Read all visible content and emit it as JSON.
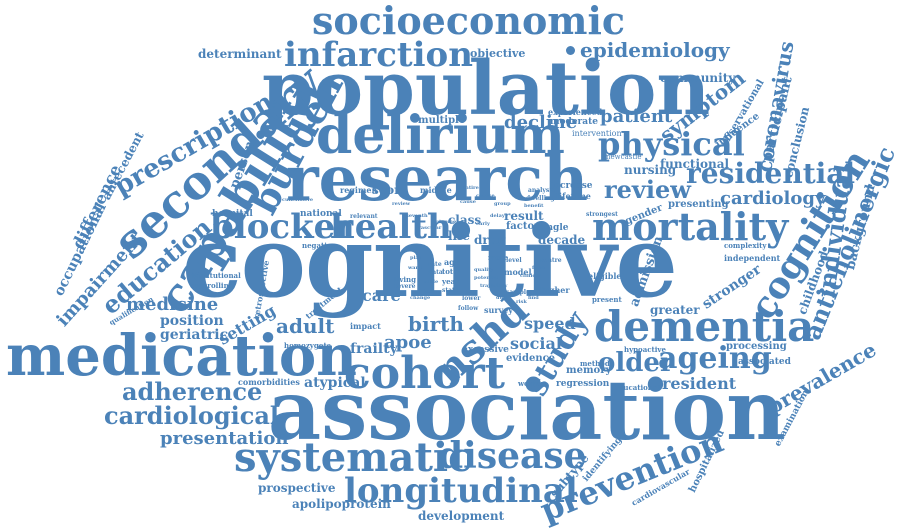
{
  "cloud": {
    "color": "#4b82b8",
    "words": [
      "cognitive",
      "population",
      "association",
      "medication",
      "research",
      "delirium",
      "dementia",
      "socioeconomic",
      "infarction",
      "secondary",
      "capability",
      "mortality",
      "blocker",
      "health",
      "cohort",
      "nshd",
      "study",
      "systematic",
      "disease",
      "longitudinal",
      "prevention",
      "ageing",
      "older",
      "cognition",
      "residential",
      "physical",
      "review",
      "burden",
      "prescription",
      "epidemiology",
      "education",
      "adherence",
      "cardiological",
      "presentation",
      "patient",
      "symptom",
      "decline",
      "coronavirus",
      "anticholinergic",
      "individual",
      "prevalence",
      "cardiology",
      "impairment",
      "difference",
      "occupational",
      "antecedent",
      "medicine",
      "position",
      "geriatric",
      "setting",
      "adult",
      "care",
      "birth",
      "apoe",
      "frailty",
      "atypical",
      "social",
      "speed",
      "resident",
      "admission",
      "stronger",
      "greater",
      "childhood",
      "background",
      "participant",
      "conclusion",
      "community",
      "observational",
      "influence",
      "multiple",
      "moderate",
      "experienced",
      "intervention",
      "objective",
      "determinant",
      "person",
      "hospital",
      "national",
      "score",
      "regimen",
      "midlife",
      "class",
      "result",
      "factor",
      "single",
      "decade",
      "life",
      "drug",
      "increase",
      "lifetime",
      "nursing",
      "functional",
      "gender",
      "presenting",
      "processing",
      "associated",
      "examination",
      "hospitalized",
      "cardiovascular",
      "subtype",
      "identifying",
      "evidence",
      "memory",
      "regression",
      "educational",
      "excessive",
      "survey",
      "model",
      "impact",
      "homozygote",
      "retrospective",
      "treatment",
      "institutional",
      "controlling",
      "qualification",
      "comorbidities",
      "apolipoprotein",
      "development",
      "prospective",
      "independent",
      "complexity",
      "hypoactive",
      "eligible",
      "present",
      "newcastle",
      "negative",
      "relevant",
      "strongest",
      "higher",
      "woman",
      "method",
      "age",
      "total",
      "year",
      "state",
      "more",
      "rate",
      "data",
      "level",
      "living",
      "severe",
      "lower",
      "follow",
      "sample",
      "analysis",
      "dwelling",
      "benefit",
      "centre",
      "seventh",
      "vascular",
      "outcome",
      "early",
      "delay",
      "cumulative",
      "quality",
      "potential",
      "clinical",
      "entire",
      "course",
      "group",
      "cause",
      "review",
      "trajectory",
      "dual",
      "test",
      "scale",
      "form",
      "change",
      "risk",
      "find",
      "ward",
      "plan"
    ]
  }
}
